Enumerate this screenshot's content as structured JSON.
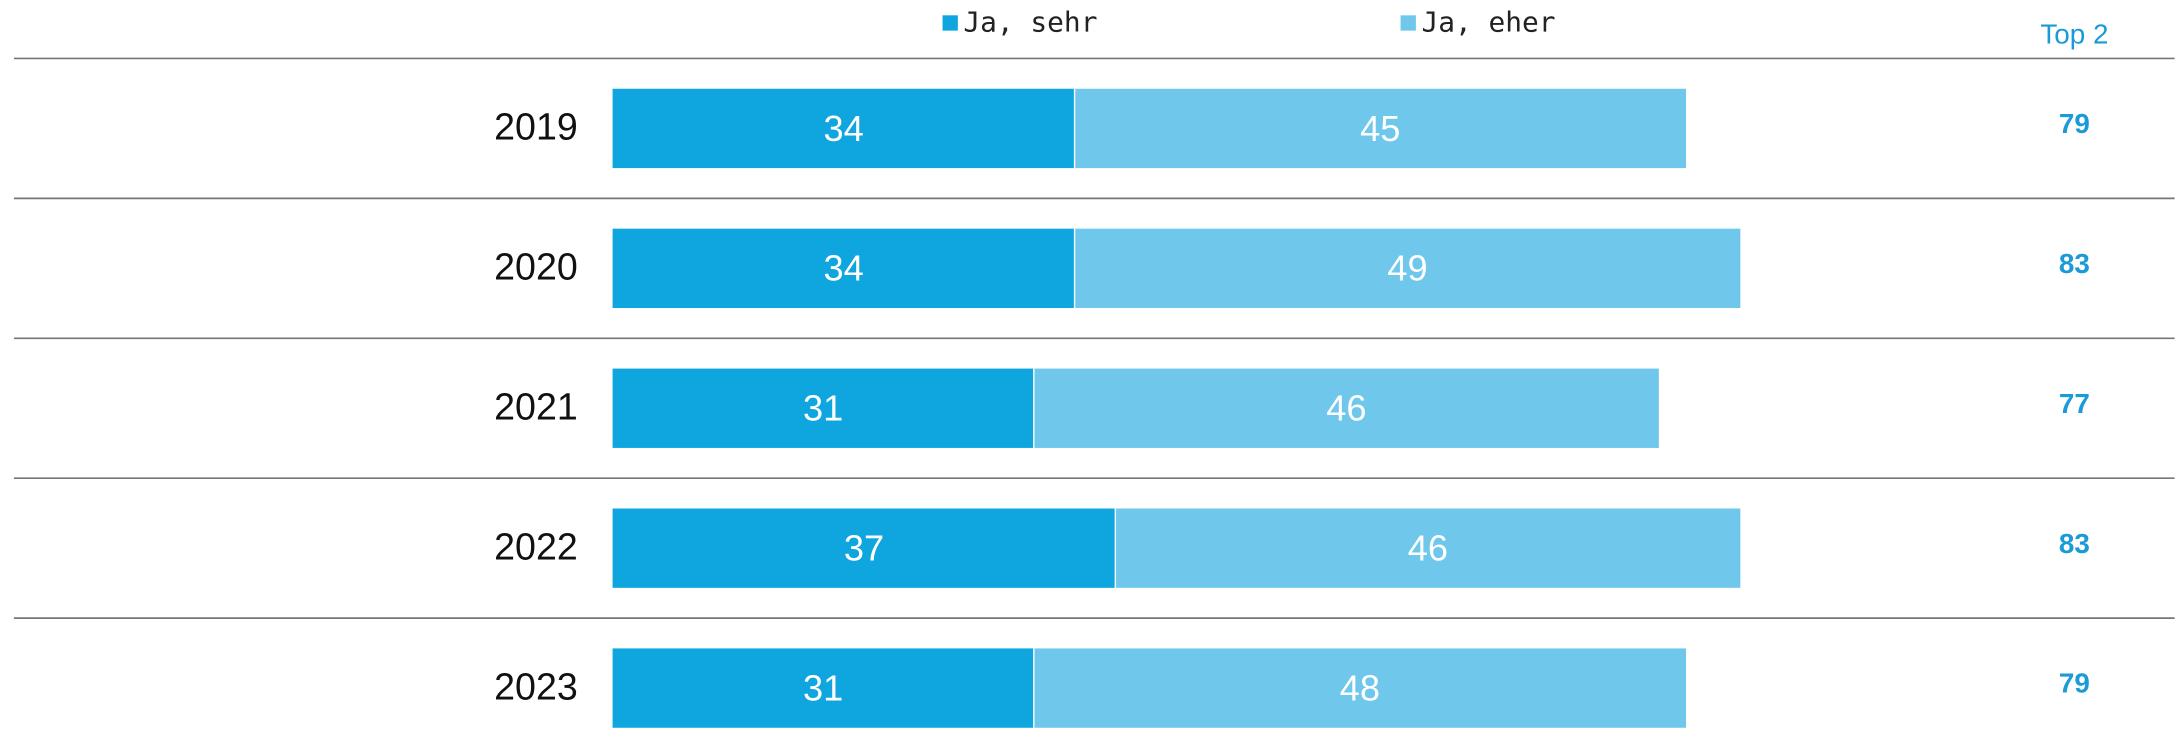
{
  "chart_data": {
    "type": "stacked-bar-horizontal",
    "categories": [
      "2019",
      "2020",
      "2021",
      "2022",
      "2023"
    ],
    "series": [
      {
        "name": "Ja, sehr",
        "color": "#0fa6e0",
        "values": [
          34,
          34,
          31,
          37,
          31
        ]
      },
      {
        "name": "Ja, eher",
        "color": "#6fc8ec",
        "values": [
          45,
          49,
          46,
          46,
          48
        ]
      }
    ],
    "totals_label": "Top 2",
    "totals": [
      79,
      83,
      77,
      83,
      79
    ]
  }
}
